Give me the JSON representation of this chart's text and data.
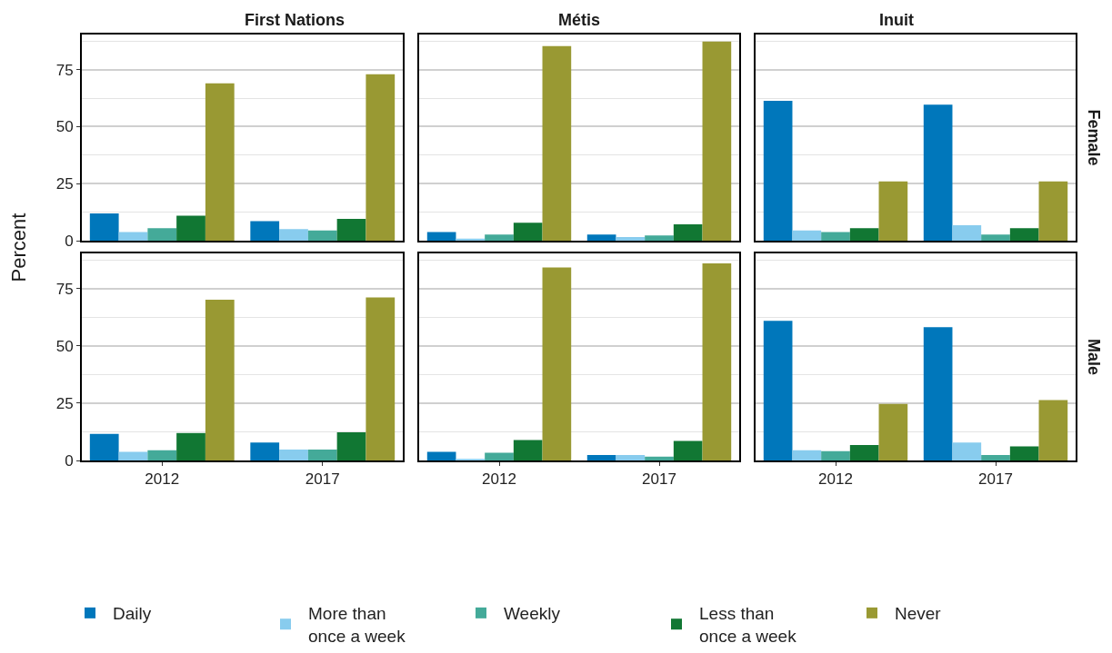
{
  "chart_data": [
    {
      "type": "bar",
      "title": "First Nations",
      "ylabel": "Percent",
      "categories": [
        "2012",
        "2017"
      ],
      "ylim": [
        0,
        90.4
      ],
      "yticks": [
        0,
        {
          "value": 12.5,
          "label": null
        },
        25,
        {
          "value": 37.5,
          "label": null
        },
        50,
        {
          "value": 62.5,
          "label": null
        },
        75,
        {
          "value": 87.5,
          "label": null
        }
      ],
      "grid": "y",
      "legend": "bottom",
      "tick_labels": "y",
      "series": [
        {
          "name": "Daily",
          "color": "#0077bb",
          "values": [
            12.0,
            8.6
          ]
        },
        {
          "name": "More than\nonce a week",
          "color": "#88ccee",
          "values": [
            3.8,
            5.1
          ]
        },
        {
          "name": "Weekly",
          "color": "#44aa99",
          "values": [
            5.5,
            4.5
          ]
        },
        {
          "name": "Less than\nonce a week",
          "color": "#117733",
          "values": [
            11.0,
            9.6
          ]
        },
        {
          "name": "Never",
          "color": "#999933",
          "values": [
            69.0,
            73.0
          ]
        }
      ]
    },
    {
      "type": "bar",
      "title": "Métis",
      "categories": [
        "2012",
        "2017"
      ],
      "ylim": [
        0,
        90.4
      ],
      "yticks": [
        0,
        {
          "value": 12.5,
          "label": null
        },
        25,
        {
          "value": 37.5,
          "label": null
        },
        50,
        {
          "value": 62.5,
          "label": null
        },
        75,
        {
          "value": 87.5,
          "label": null
        }
      ],
      "grid": "y",
      "tick_labels": false,
      "series": [
        {
          "color": "#0077bb",
          "values": [
            3.8,
            2.7
          ]
        },
        {
          "color": "#88ccee",
          "values": [
            1.0,
            1.7
          ]
        },
        {
          "color": "#44aa99",
          "values": [
            2.7,
            2.4
          ]
        },
        {
          "color": "#117733",
          "values": [
            7.9,
            7.2
          ]
        },
        {
          "color": "#999933",
          "values": [
            85.3,
            87.3
          ]
        }
      ]
    },
    {
      "type": "bar",
      "title": "Inuit",
      "annotations": [
        "Female"
      ],
      "categories": [
        "2012",
        "2017"
      ],
      "ylim": [
        0,
        90.4
      ],
      "yticks": [
        0,
        {
          "value": 12.5,
          "label": null
        },
        25,
        {
          "value": 37.5,
          "label": null
        },
        50,
        {
          "value": 62.5,
          "label": null
        },
        75,
        {
          "value": 87.5,
          "label": null
        }
      ],
      "grid": "y",
      "tick_labels": false,
      "series": [
        {
          "color": "#0077bb",
          "values": [
            61.3,
            59.6
          ]
        },
        {
          "color": "#88ccee",
          "values": [
            4.5,
            6.8
          ]
        },
        {
          "color": "#44aa99",
          "values": [
            3.8,
            2.7
          ]
        },
        {
          "color": "#117733",
          "values": [
            5.5,
            5.5
          ]
        },
        {
          "color": "#999933",
          "values": [
            26.0,
            26.0
          ]
        }
      ]
    },
    {
      "type": "bar",
      "categories": [
        "2012",
        "2017"
      ],
      "ylim": [
        0,
        90.4
      ],
      "yticks": [
        0,
        {
          "value": 12.5,
          "label": null
        },
        25,
        {
          "value": 37.5,
          "label": null
        },
        50,
        {
          "value": 62.5,
          "label": null
        },
        75,
        {
          "value": 87.5,
          "label": null
        }
      ],
      "grid": "y",
      "series": [
        {
          "color": "#0077bb",
          "values": [
            11.6,
            7.9
          ]
        },
        {
          "color": "#88ccee",
          "values": [
            3.8,
            4.8
          ]
        },
        {
          "color": "#44aa99",
          "values": [
            4.5,
            4.8
          ]
        },
        {
          "color": "#117733",
          "values": [
            12.0,
            12.3
          ]
        },
        {
          "color": "#999933",
          "values": [
            70.2,
            71.2
          ]
        }
      ]
    },
    {
      "type": "bar",
      "categories": [
        "2012",
        "2017"
      ],
      "ylim": [
        0,
        90.4
      ],
      "yticks": [
        0,
        {
          "value": 12.5,
          "label": null
        },
        25,
        {
          "value": 37.5,
          "label": null
        },
        50,
        {
          "value": 62.5,
          "label": null
        },
        75,
        {
          "value": 87.5,
          "label": null
        }
      ],
      "grid": "y",
      "tick_labels": "x",
      "series": [
        {
          "color": "#0077bb",
          "values": [
            3.8,
            2.4
          ]
        },
        {
          "color": "#88ccee",
          "values": [
            0.7,
            2.4
          ]
        },
        {
          "color": "#44aa99",
          "values": [
            3.4,
            1.7
          ]
        },
        {
          "color": "#117733",
          "values": [
            8.9,
            8.6
          ]
        },
        {
          "color": "#999933",
          "values": [
            84.2,
            86.0
          ]
        }
      ]
    },
    {
      "type": "bar",
      "annotations": [
        "Male"
      ],
      "categories": [
        "2012",
        "2017"
      ],
      "ylim": [
        0,
        90.4
      ],
      "yticks": [
        0,
        {
          "value": 12.5,
          "label": null
        },
        25,
        {
          "value": 37.5,
          "label": null
        },
        50,
        {
          "value": 62.5,
          "label": null
        },
        75,
        {
          "value": 87.5,
          "label": null
        }
      ],
      "grid": "y",
      "tick_labels": "x",
      "series": [
        {
          "color": "#0077bb",
          "values": [
            61.0,
            58.2
          ]
        },
        {
          "color": "#88ccee",
          "values": [
            4.5,
            7.9
          ]
        },
        {
          "color": "#44aa99",
          "values": [
            4.1,
            2.4
          ]
        },
        {
          "color": "#117733",
          "values": [
            6.8,
            6.2
          ]
        },
        {
          "color": "#999933",
          "values": [
            24.7,
            26.4
          ]
        }
      ]
    }
  ]
}
